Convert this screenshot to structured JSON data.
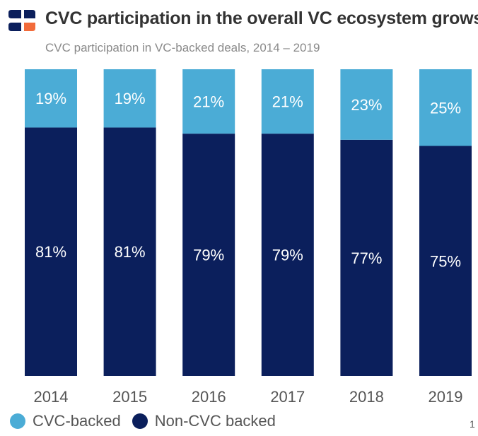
{
  "header": {
    "logo_icon": "brand-logo-icon",
    "title": "CVC participation in the overall VC ecosystem grows",
    "subtitle": "CVC participation in VC-backed deals, 2014 – 2019"
  },
  "colors": {
    "cvc": "#4bacd6",
    "non_cvc": "#0b1f5c",
    "logo_dark": "#0b1f5c",
    "logo_accent": "#f26b3a",
    "axis_text": "#555555"
  },
  "chart_data": {
    "type": "bar",
    "stacked": true,
    "categories": [
      "2014",
      "2015",
      "2016",
      "2017",
      "2018",
      "2019"
    ],
    "series": [
      {
        "name": "Non-CVC backed",
        "values": [
          81,
          81,
          79,
          79,
          77,
          75
        ],
        "labels": [
          "81%",
          "81%",
          "79%",
          "79%",
          "77%",
          "75%"
        ]
      },
      {
        "name": "CVC-backed",
        "values": [
          19,
          19,
          21,
          21,
          23,
          25
        ],
        "labels": [
          "19%",
          "19%",
          "21%",
          "21%",
          "23%",
          "25%"
        ]
      }
    ],
    "ylim": [
      0,
      100
    ],
    "grid": false,
    "legend": "bottom-left"
  },
  "legend": {
    "items": [
      {
        "label": "CVC-backed"
      },
      {
        "label": "Non-CVC backed"
      }
    ]
  },
  "page": {
    "number": "1"
  }
}
